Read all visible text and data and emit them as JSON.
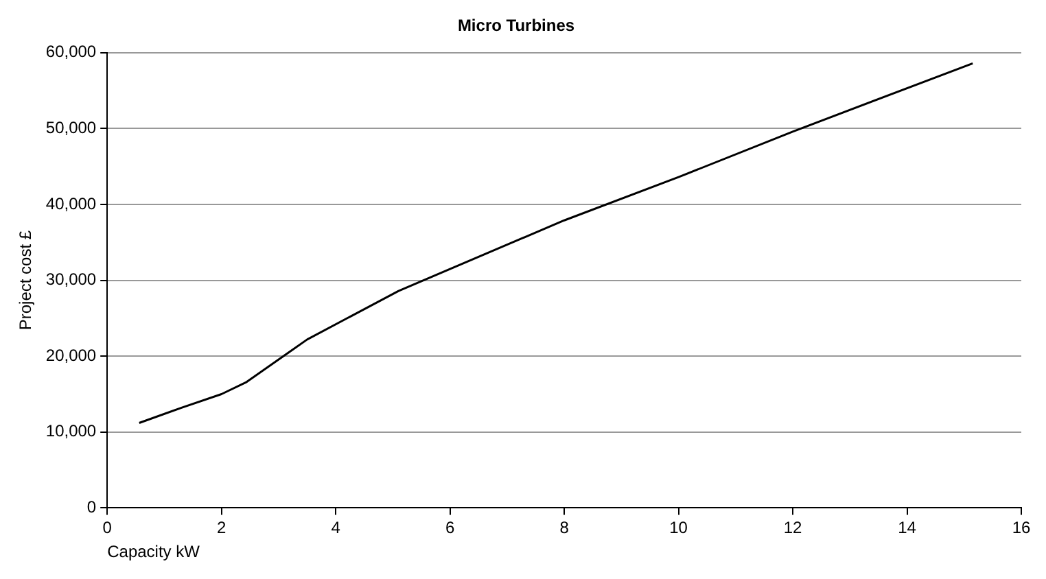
{
  "chart_data": {
    "type": "line",
    "title": "Micro Turbines",
    "xlabel": "Capacity kW",
    "ylabel": "Project cost £",
    "x": [
      0.56,
      1.3,
      2,
      2.44,
      3.5,
      5.1,
      6,
      8,
      10,
      12,
      15.15
    ],
    "series": [
      {
        "color": "#000000",
        "values": [
          11200,
          13200,
          15000,
          16600,
          22200,
          28600,
          31500,
          37900,
          43600,
          49600,
          58600
        ]
      }
    ],
    "xlim": [
      0,
      16
    ],
    "xticks": [
      0,
      2,
      4,
      6,
      8,
      10,
      12,
      14,
      16
    ],
    "ylim": [
      0,
      60000
    ],
    "yticks": [
      0,
      {
        "value": 10000,
        "label": "10,000"
      },
      {
        "value": 20000,
        "label": "20,000"
      },
      {
        "value": 30000,
        "label": "30,000"
      },
      {
        "value": 40000,
        "label": "40,000"
      },
      {
        "value": 50000,
        "label": "50,000"
      },
      {
        "value": 60000,
        "label": "60,000"
      }
    ],
    "grid": "y",
    "legend": false,
    "marker": "none",
    "line_style": "solid"
  }
}
